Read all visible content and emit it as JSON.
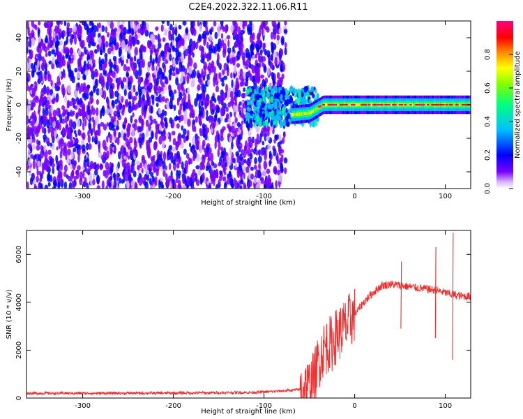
{
  "title": "C2E4.2022.322.11.06.R11",
  "colors": {
    "snr_line": "#ee2c2c",
    "sig_low": "#7b2ff7",
    "sig_mid": "#00ff80",
    "sig_high": "#ff1040"
  },
  "chart_data": [
    {
      "type": "heatmap",
      "title": "C2E4.2022.322.11.06.R11",
      "xlabel": "Height of straight line (km)",
      "ylabel": "Frequency (Hz)",
      "xlim": [
        -362,
        128
      ],
      "ylim": [
        -50,
        50
      ],
      "xticks": [
        -300,
        -200,
        -100,
        0,
        100
      ],
      "yticks": [
        -40,
        -20,
        0,
        20,
        40
      ],
      "xtick_labels": [
        "-300",
        "-200",
        "-100",
        "0",
        "100"
      ],
      "ytick_labels": [
        "-40",
        "-20",
        "0",
        "20",
        "40"
      ],
      "colorbar": {
        "label": "Normalized spectral amplitude",
        "range": [
          0,
          1
        ],
        "ticks": [
          0.0,
          0.2,
          0.4,
          0.6,
          0.8
        ],
        "tick_labels": [
          "0.0",
          "0.2",
          "0.4",
          "0.6",
          "0.8"
        ],
        "colormap": [
          "#ffffff",
          "#7b00ff",
          "#0000ff",
          "#00c0ff",
          "#00ff80",
          "#80ff00",
          "#ffff00",
          "#ff8000",
          "#ff0000",
          "#ff0080"
        ]
      },
      "signal": {
        "noise_until_x": -80,
        "transition_x": [
          -120,
          -40
        ],
        "carrier_center_x": [
          -70,
          -50,
          -35,
          0,
          128
        ],
        "carrier_center_y": [
          -6,
          -5,
          0,
          0,
          0
        ],
        "carrier_peak_amplitude": 0.95
      },
      "grid": false
    },
    {
      "type": "line",
      "title": "",
      "xlabel": "Height of straight line (km)",
      "ylabel": "SNR (10 * v/v)",
      "xlim": [
        -362,
        128
      ],
      "ylim": [
        0,
        7000
      ],
      "xticks": [
        -300,
        -200,
        -100,
        0,
        100
      ],
      "yticks": [
        0,
        2000,
        4000,
        6000
      ],
      "xtick_labels": [
        "-300",
        "-200",
        "-100",
        "0",
        "100"
      ],
      "ytick_labels": [
        "0",
        "2000",
        "4000",
        "6000"
      ],
      "series": [
        {
          "x": [
            -362,
            -300,
            -200,
            -120,
            -100,
            -80,
            -60,
            -50,
            -45,
            -40,
            -35,
            -30,
            -25,
            -20,
            -10,
            0,
            10,
            20,
            30,
            40,
            50,
            60,
            70,
            80,
            90,
            100,
            110,
            120,
            128
          ],
          "y": [
            200,
            200,
            210,
            230,
            250,
            300,
            350,
            500,
            800,
            1500,
            2000,
            2200,
            2300,
            2600,
            3000,
            3500,
            4000,
            4400,
            4700,
            4750,
            4700,
            4650,
            4600,
            4550,
            4500,
            4400,
            4300,
            4250,
            4250
          ],
          "spikes": [
            {
              "x": 51,
              "y_high": 5700,
              "y_low": 2900
            },
            {
              "x": 89,
              "y_high": 6300,
              "y_low": 2500
            },
            {
              "x": 108,
              "y_high": 6900,
              "y_low": 1600
            }
          ]
        }
      ],
      "grid": false
    }
  ]
}
